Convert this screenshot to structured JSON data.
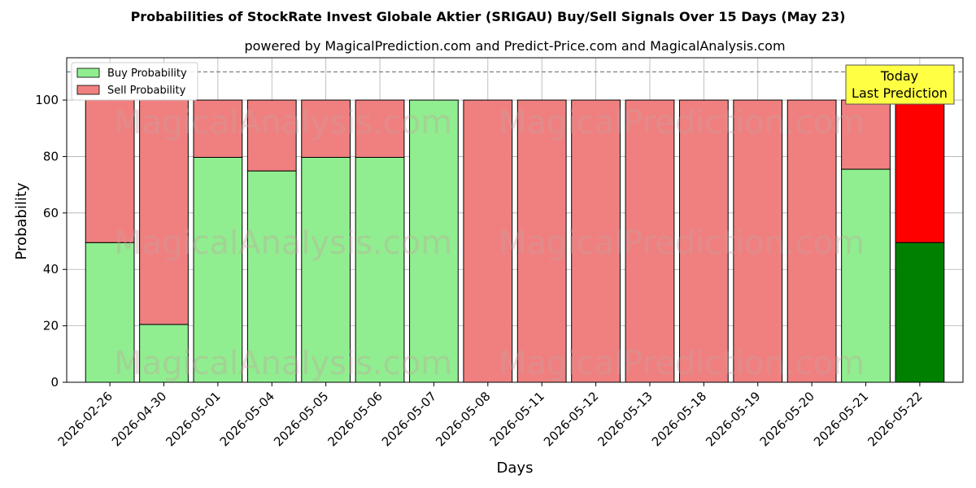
{
  "chart_data": {
    "type": "bar",
    "stacked": true,
    "title": "Probabilities of StockRate Invest Globale Aktier (SRIGAU) Buy/Sell Signals Over 15 Days (May 23)",
    "subtitle": "powered by MagicalPrediction.com and Predict-Price.com and MagicalAnalysis.com",
    "xlabel": "Days",
    "ylabel": "Probability",
    "ylim": [
      0,
      115
    ],
    "yticks": [
      0,
      20,
      40,
      60,
      80,
      100
    ],
    "reference_line": 110,
    "grid": true,
    "legend_position": "top-left",
    "categories": [
      "2026-02-26",
      "2026-04-30",
      "2026-05-01",
      "2026-05-04",
      "2026-05-05",
      "2026-05-06",
      "2026-05-07",
      "2026-05-08",
      "2026-05-11",
      "2026-05-12",
      "2026-05-13",
      "2026-05-18",
      "2026-05-19",
      "2026-05-20",
      "2026-05-21",
      "2026-05-22"
    ],
    "series": [
      {
        "name": "Buy Probability",
        "color": "#90ee90",
        "highlight_color": "#008000",
        "values": [
          49.5,
          20.5,
          79.7,
          74.9,
          79.7,
          79.7,
          100,
          0,
          0,
          0,
          0,
          0,
          0,
          0,
          75.5,
          49.5
        ]
      },
      {
        "name": "Sell Probability",
        "color": "#f08080",
        "highlight_color": "#ff0000",
        "values": [
          50.5,
          79.5,
          20.3,
          25.1,
          20.3,
          20.3,
          0,
          100,
          100,
          100,
          100,
          100,
          100,
          100,
          24.5,
          50.5
        ]
      }
    ],
    "highlight_index": 15,
    "annotation": {
      "lines": [
        "Today",
        "Last Prediction"
      ],
      "background": "#ffff44"
    },
    "watermarks": [
      "MagicalAnalysis.com",
      "MagicalPrediction.com"
    ]
  }
}
